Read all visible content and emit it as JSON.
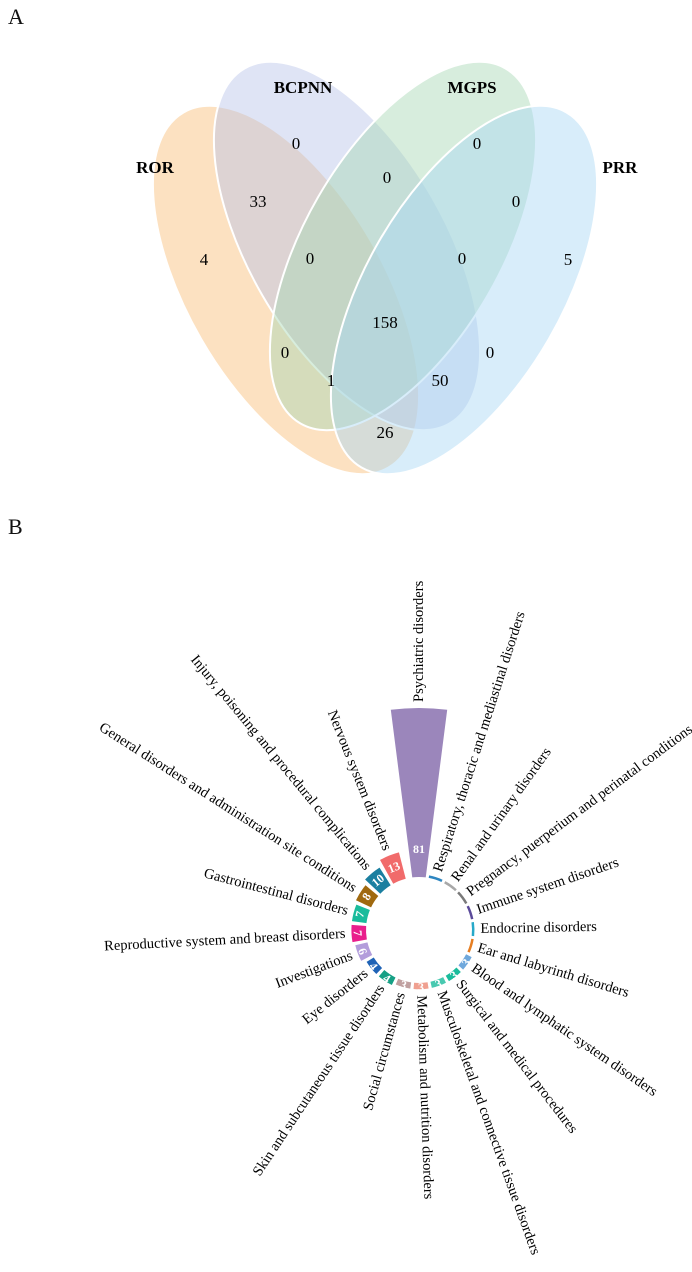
{
  "panels": {
    "a_label": "A",
    "b_label": "B"
  },
  "venn": {
    "sets": [
      {
        "name": "ROR",
        "color": "#f9c98e"
      },
      {
        "name": "BCPNN",
        "color": "#b9c3e8"
      },
      {
        "name": "MGPS",
        "color": "#a6d8b4"
      },
      {
        "name": "PRR",
        "color": "#a9d8f5"
      }
    ],
    "regions": [
      {
        "sets": [
          "ROR"
        ],
        "count": "4"
      },
      {
        "sets": [
          "BCPNN"
        ],
        "count": "0"
      },
      {
        "sets": [
          "MGPS"
        ],
        "count": "0"
      },
      {
        "sets": [
          "PRR"
        ],
        "count": "5"
      },
      {
        "sets": [
          "ROR",
          "BCPNN"
        ],
        "count": "33"
      },
      {
        "sets": [
          "BCPNN",
          "MGPS"
        ],
        "count": "0"
      },
      {
        "sets": [
          "MGPS",
          "PRR"
        ],
        "count": "0"
      },
      {
        "sets": [
          "ROR",
          "BCPNN",
          "MGPS"
        ],
        "count": "0"
      },
      {
        "sets": [
          "BCPNN",
          "MGPS",
          "PRR"
        ],
        "count": "0"
      },
      {
        "sets": [
          "ROR",
          "BCPNN",
          "MGPS",
          "PRR"
        ],
        "count": "158"
      },
      {
        "sets": [
          "ROR",
          "MGPS"
        ],
        "count": "0"
      },
      {
        "sets": [
          "BCPNN",
          "PRR"
        ],
        "count": "0"
      },
      {
        "sets": [
          "ROR",
          "MGPS",
          "PRR"
        ],
        "count": "1"
      },
      {
        "sets": [
          "ROR",
          "BCPNN",
          "PRR"
        ],
        "count": "50"
      },
      {
        "sets": [
          "ROR",
          "PRR"
        ],
        "count": "26"
      }
    ]
  },
  "chart_data": {
    "type": "bar",
    "layout": "radial",
    "categories": [
      "Psychiatric disorders",
      "Respiratory, thoracic and mediastinal disorders",
      "Renal and urinary disorders",
      "Pregnancy, puerperium and perinatal conditions",
      "Immune system disorders",
      "Endocrine disorders",
      "Ear and labyrinth disorders",
      "Blood and lymphatic system disorders",
      "Surgical and medical procedures",
      "Musculoskeletal and connective tissue disorders",
      "Metabolism and nutrition disorders",
      "Social circumstances",
      "Skin and subcutaneous tissue disorders",
      "Eye disorders",
      "Investigations",
      "Reproductive system and breast disorders",
      "Gastrointestinal disorders",
      "General disorders and administration site conditions",
      "Injury, poisoning and procedural complications",
      "Nervous system disorders"
    ],
    "values": [
      81,
      1,
      1,
      1,
      1,
      1,
      1,
      3,
      3,
      3,
      3,
      3,
      4,
      4,
      6,
      7,
      7,
      8,
      10,
      13
    ],
    "value_labels": [
      "81",
      "",
      "",
      "",
      "",
      "",
      "",
      "3",
      "3",
      "3",
      "3",
      "3",
      "4",
      "4",
      "6",
      "7",
      "7",
      "8",
      "10",
      "13"
    ],
    "colors": [
      "#9b86bb",
      "#2e86c1",
      "#a8a8a8",
      "#7a7a7a",
      "#5b4a9a",
      "#27a9c9",
      "#e67e22",
      "#6fa8dc",
      "#1abc9c",
      "#48c9b0",
      "#f0a090",
      "#c0a0a0",
      "#16a085",
      "#1f63b6",
      "#b39ddb",
      "#e91e8c",
      "#1abc9c",
      "#a0690f",
      "#1b7fa0",
      "#f16b6b"
    ]
  }
}
